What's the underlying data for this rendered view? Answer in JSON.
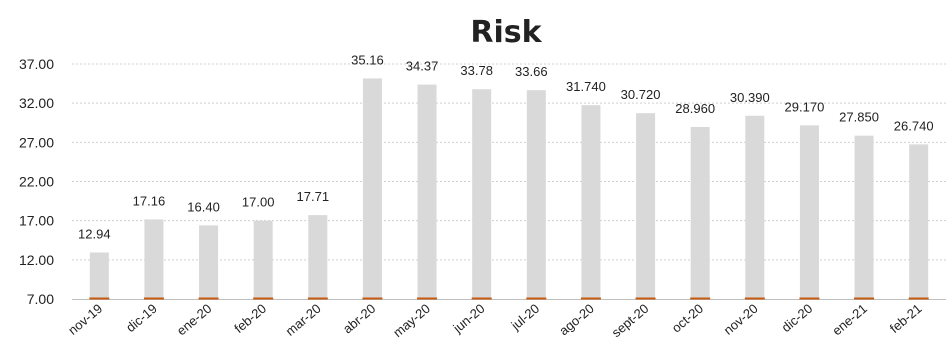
{
  "chart_data": {
    "type": "bar",
    "title": "Risk",
    "categories": [
      "nov-19",
      "dic-19",
      "ene-20",
      "feb-20",
      "mar-20",
      "abr-20",
      "may-20",
      "jun-20",
      "jul-20",
      "ago-20",
      "sept-20",
      "oct-20",
      "nov-20",
      "dic-20",
      "ene-21",
      "feb-21"
    ],
    "series": [
      {
        "values": [
          12.94,
          17.16,
          16.4,
          17.0,
          17.71,
          35.16,
          34.37,
          33.78,
          33.66,
          31.74,
          30.72,
          28.96,
          30.39,
          29.17,
          27.85,
          26.74
        ],
        "data_labels": [
          "12.94",
          "17.16",
          "16.40",
          "17.00",
          "17.71",
          "35.16",
          "34.37",
          "33.78",
          "33.66",
          "31.740",
          "30.720",
          "28.960",
          "30.390",
          "29.170",
          "27.850",
          "26.740"
        ],
        "color": "#d9d9d9"
      },
      {
        "values": [
          7.0,
          7.0,
          7.0,
          7.0,
          7.0,
          7.0,
          7.0,
          7.0,
          7.0,
          7.0,
          7.0,
          7.0,
          7.0,
          7.0,
          7.0,
          7.0
        ],
        "color": "#c55a11"
      }
    ],
    "yticks": [
      "37.00",
      "32.00",
      "27.00",
      "22.00",
      "17.00",
      "12.00",
      "7.00"
    ],
    "ylim": [
      7,
      37
    ],
    "grid": "horizontal-dashed",
    "xlabel": "",
    "ylabel": ""
  }
}
